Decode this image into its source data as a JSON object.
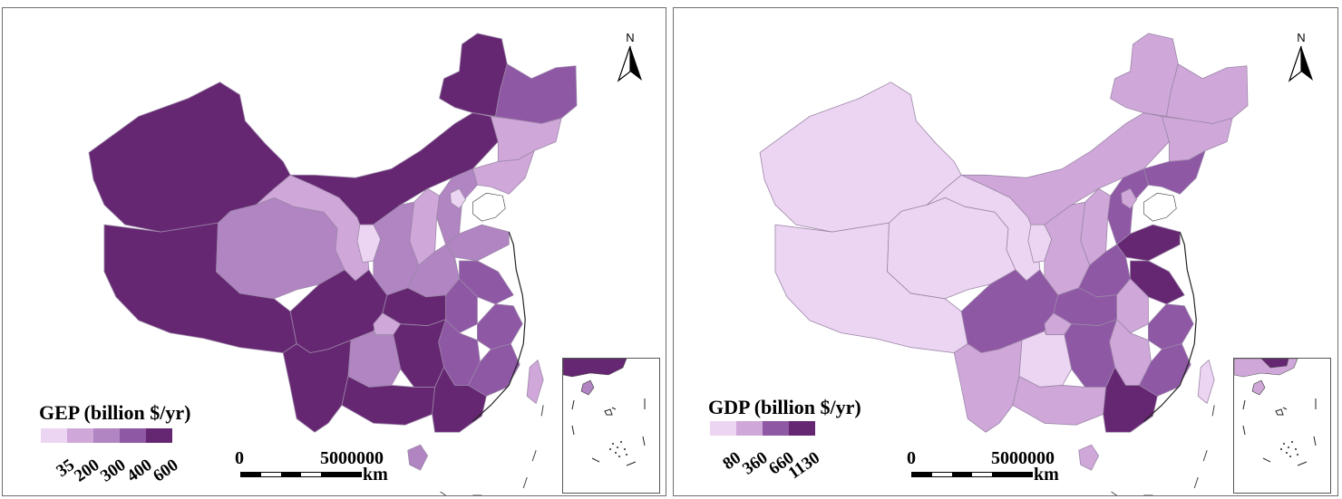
{
  "colors": {
    "c1": "#ecd5f2",
    "c2": "#cfa8d9",
    "c3": "#b085c2",
    "c4": "#8e58a5",
    "c5": "#652771",
    "border": "#9c86a8"
  },
  "gep": {
    "legend_title_abbr": "GEP",
    "legend_title_unit": "(billion $/yr)",
    "legend_ticks": [
      "35",
      "200",
      "300",
      "400",
      "600"
    ],
    "legend_colors": [
      "#ecd5f2",
      "#cfa8d9",
      "#b085c2",
      "#8e58a5",
      "#652771"
    ],
    "scale_zero": "0",
    "scale_max": "5000000",
    "scale_unit": "km",
    "north_label": "N"
  },
  "gdp": {
    "legend_title_abbr": "GDP",
    "legend_title_unit": "(billion $/yr)",
    "legend_ticks": [
      "80",
      "360",
      "660",
      "1130"
    ],
    "legend_colors": [
      "#ecd5f2",
      "#cfa8d9",
      "#8e58a5",
      "#652771"
    ],
    "scale_zero": "0",
    "scale_max": "5000000",
    "scale_unit": "km",
    "north_label": "N"
  }
}
